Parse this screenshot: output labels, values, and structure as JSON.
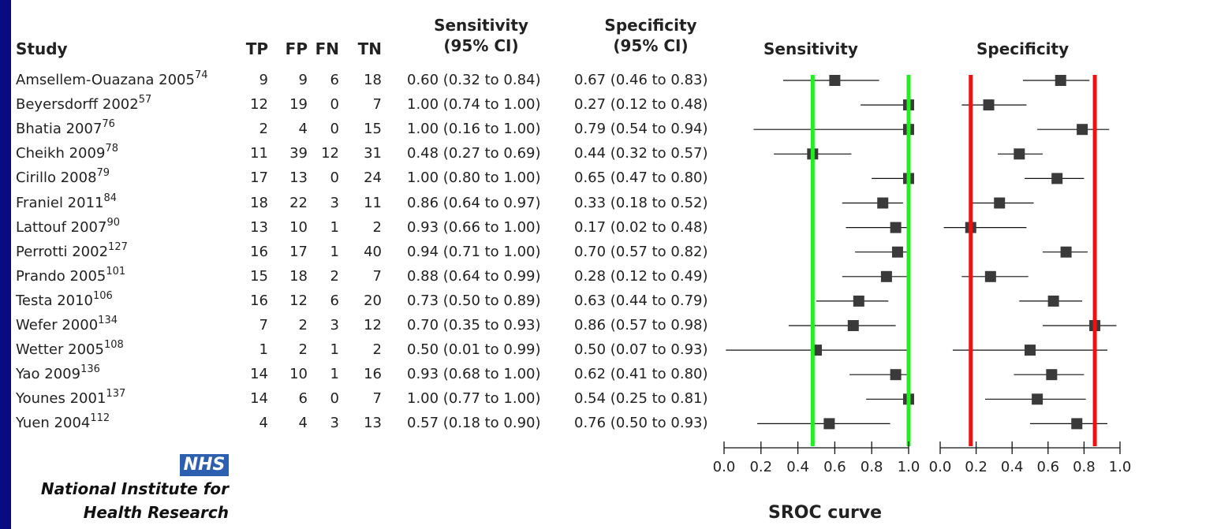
{
  "header": {
    "study": "Study",
    "tp": "TP",
    "fp": "FP",
    "fn": "FN",
    "tn": "TN",
    "sens_ci_line1": "Sensitivity",
    "sens_ci_line2": "(95% CI)",
    "spec_ci_line1": "Specificity",
    "spec_ci_line2": "(95% CI)",
    "sens_plot": "Sensitivity",
    "spec_plot": "Specificity"
  },
  "studies": [
    {
      "name": "Amsellem-Ouazana 2005",
      "ref": "74",
      "tp": "9",
      "fp": "9",
      "fn": "6",
      "tn": "18",
      "sens_text": "0.60 (0.32 to 0.84)",
      "spec_text": "0.67 (0.46 to 0.83)"
    },
    {
      "name": "Beyersdorff 2002",
      "ref": "57",
      "tp": "12",
      "fp": "19",
      "fn": "0",
      "tn": "7",
      "sens_text": "1.00 (0.74 to 1.00)",
      "spec_text": "0.27 (0.12 to 0.48)"
    },
    {
      "name": "Bhatia 2007",
      "ref": "76",
      "tp": "2",
      "fp": "4",
      "fn": "0",
      "tn": "15",
      "sens_text": "1.00 (0.16 to 1.00)",
      "spec_text": "0.79 (0.54 to 0.94)"
    },
    {
      "name": "Cheikh 2009",
      "ref": "78",
      "tp": "11",
      "fp": "39",
      "fn": "12",
      "tn": "31",
      "sens_text": "0.48 (0.27 to 0.69)",
      "spec_text": "0.44 (0.32 to 0.57)"
    },
    {
      "name": "Cirillo 2008",
      "ref": "79",
      "tp": "17",
      "fp": "13",
      "fn": "0",
      "tn": "24",
      "sens_text": "1.00 (0.80 to 1.00)",
      "spec_text": "0.65 (0.47 to 0.80)"
    },
    {
      "name": "Franiel 2011",
      "ref": "84",
      "tp": "18",
      "fp": "22",
      "fn": "3",
      "tn": "11",
      "sens_text": "0.86 (0.64 to 0.97)",
      "spec_text": "0.33 (0.18 to 0.52)"
    },
    {
      "name": "Lattouf 2007",
      "ref": "90",
      "tp": "13",
      "fp": "10",
      "fn": "1",
      "tn": "2",
      "sens_text": "0.93 (0.66 to 1.00)",
      "spec_text": "0.17 (0.02 to 0.48)"
    },
    {
      "name": "Perrotti 2002",
      "ref": "127",
      "tp": "16",
      "fp": "17",
      "fn": "1",
      "tn": "40",
      "sens_text": "0.94 (0.71 to 1.00)",
      "spec_text": "0.70 (0.57 to 0.82)"
    },
    {
      "name": "Prando 2005",
      "ref": "101",
      "tp": "15",
      "fp": "18",
      "fn": "2",
      "tn": "7",
      "sens_text": "0.88 (0.64 to 0.99)",
      "spec_text": "0.28 (0.12 to 0.49)"
    },
    {
      "name": "Testa 2010",
      "ref": "106",
      "tp": "16",
      "fp": "12",
      "fn": "6",
      "tn": "20",
      "sens_text": "0.73 (0.50 to 0.89)",
      "spec_text": "0.63 (0.44 to 0.79)"
    },
    {
      "name": "Wefer 2000",
      "ref": "134",
      "tp": "7",
      "fp": "2",
      "fn": "3",
      "tn": "12",
      "sens_text": "0.70 (0.35 to 0.93)",
      "spec_text": "0.86 (0.57 to 0.98)"
    },
    {
      "name": "Wetter 2005",
      "ref": "108",
      "tp": "1",
      "fp": "2",
      "fn": "1",
      "tn": "2",
      "sens_text": "0.50 (0.01 to 0.99)",
      "spec_text": "0.50 (0.07 to 0.93)"
    },
    {
      "name": "Yao 2009",
      "ref": "136",
      "tp": "14",
      "fp": "10",
      "fn": "1",
      "tn": "16",
      "sens_text": "0.93 (0.68 to 1.00)",
      "spec_text": "0.62 (0.41 to 0.80)"
    },
    {
      "name": "Younes 2001",
      "ref": "137",
      "tp": "14",
      "fp": "6",
      "fn": "0",
      "tn": "7",
      "sens_text": "1.00 (0.77 to 1.00)",
      "spec_text": "0.54 (0.25 to 0.81)"
    },
    {
      "name": "Yuen 2004",
      "ref": "112",
      "tp": "4",
      "fp": "4",
      "fn": "3",
      "tn": "13",
      "sens_text": "0.57 (0.18 to 0.90)",
      "spec_text": "0.76 (0.50 to 0.93)"
    }
  ],
  "chart_data": {
    "type": "forest",
    "panels": [
      {
        "title": "Sensitivity",
        "xlim": [
          0,
          1
        ],
        "ticks": [
          "0.0",
          "0.2",
          "0.4",
          "0.6",
          "0.8",
          "1.0"
        ],
        "points": [
          {
            "est": 0.6,
            "lo": 0.32,
            "hi": 0.84
          },
          {
            "est": 1.0,
            "lo": 0.74,
            "hi": 1.0
          },
          {
            "est": 1.0,
            "lo": 0.16,
            "hi": 1.0
          },
          {
            "est": 0.48,
            "lo": 0.27,
            "hi": 0.69
          },
          {
            "est": 1.0,
            "lo": 0.8,
            "hi": 1.0
          },
          {
            "est": 0.86,
            "lo": 0.64,
            "hi": 0.97
          },
          {
            "est": 0.93,
            "lo": 0.66,
            "hi": 1.0
          },
          {
            "est": 0.94,
            "lo": 0.71,
            "hi": 1.0
          },
          {
            "est": 0.88,
            "lo": 0.64,
            "hi": 0.99
          },
          {
            "est": 0.73,
            "lo": 0.5,
            "hi": 0.89
          },
          {
            "est": 0.7,
            "lo": 0.35,
            "hi": 0.93
          },
          {
            "est": 0.5,
            "lo": 0.01,
            "hi": 0.99
          },
          {
            "est": 0.93,
            "lo": 0.68,
            "hi": 1.0
          },
          {
            "est": 1.0,
            "lo": 0.77,
            "hi": 1.0
          },
          {
            "est": 0.57,
            "lo": 0.18,
            "hi": 0.9
          }
        ],
        "reference_lines": [
          {
            "value": 0.48,
            "color": "#22ee22"
          },
          {
            "value": 1.0,
            "color": "#22ee22"
          }
        ]
      },
      {
        "title": "Specificity",
        "xlim": [
          0,
          1
        ],
        "ticks": [
          "0.0",
          "0.2",
          "0.4",
          "0.6",
          "0.8",
          "1.0"
        ],
        "points": [
          {
            "est": 0.67,
            "lo": 0.46,
            "hi": 0.83
          },
          {
            "est": 0.27,
            "lo": 0.12,
            "hi": 0.48
          },
          {
            "est": 0.79,
            "lo": 0.54,
            "hi": 0.94
          },
          {
            "est": 0.44,
            "lo": 0.32,
            "hi": 0.57
          },
          {
            "est": 0.65,
            "lo": 0.47,
            "hi": 0.8
          },
          {
            "est": 0.33,
            "lo": 0.18,
            "hi": 0.52
          },
          {
            "est": 0.17,
            "lo": 0.02,
            "hi": 0.48
          },
          {
            "est": 0.7,
            "lo": 0.57,
            "hi": 0.82
          },
          {
            "est": 0.28,
            "lo": 0.12,
            "hi": 0.49
          },
          {
            "est": 0.63,
            "lo": 0.44,
            "hi": 0.79
          },
          {
            "est": 0.86,
            "lo": 0.57,
            "hi": 0.98
          },
          {
            "est": 0.5,
            "lo": 0.07,
            "hi": 0.93
          },
          {
            "est": 0.62,
            "lo": 0.41,
            "hi": 0.8
          },
          {
            "est": 0.54,
            "lo": 0.25,
            "hi": 0.81
          },
          {
            "est": 0.76,
            "lo": 0.5,
            "hi": 0.93
          }
        ],
        "reference_lines": [
          {
            "value": 0.17,
            "color": "#ee1111"
          },
          {
            "value": 0.86,
            "color": "#ee1111"
          }
        ]
      }
    ]
  },
  "logo": {
    "nhs": "NHS",
    "line1": "National Institute for",
    "line2": "Health Research"
  },
  "footer": {
    "sroc": "SROC curve"
  },
  "colors": {
    "frame": "#0a0a82",
    "square": "#3a3a3a",
    "nhs_blue": "#2c5fb0"
  }
}
